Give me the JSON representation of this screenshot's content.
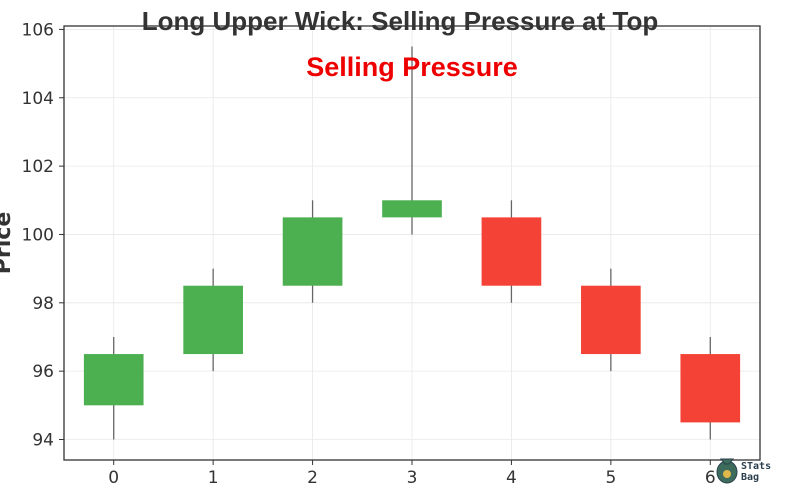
{
  "chart_data": {
    "type": "candlestick",
    "title": "Long Upper Wick: Selling Pressure at Top",
    "annotation": "Selling Pressure",
    "xlabel": "",
    "ylabel": "Price",
    "categories": [
      "0",
      "1",
      "2",
      "3",
      "4",
      "5",
      "6"
    ],
    "candles": [
      {
        "x": 0,
        "open": 95.0,
        "close": 96.5,
        "high": 97.0,
        "low": 94.0
      },
      {
        "x": 1,
        "open": 96.5,
        "close": 98.5,
        "high": 99.0,
        "low": 96.0
      },
      {
        "x": 2,
        "open": 98.5,
        "close": 100.5,
        "high": 101.0,
        "low": 98.0
      },
      {
        "x": 3,
        "open": 100.5,
        "close": 101.0,
        "high": 105.5,
        "low": 100.0
      },
      {
        "x": 4,
        "open": 100.5,
        "close": 98.5,
        "high": 101.0,
        "low": 98.0
      },
      {
        "x": 5,
        "open": 98.5,
        "close": 96.5,
        "high": 99.0,
        "low": 96.0
      },
      {
        "x": 6,
        "open": 96.5,
        "close": 94.5,
        "high": 97.0,
        "low": 94.0
      }
    ],
    "ylim": [
      93.4,
      106.1
    ],
    "xlim": [
      -0.5,
      6.5
    ],
    "yticks": [
      94,
      96,
      98,
      100,
      102,
      104,
      106
    ],
    "xticks": [
      0,
      1,
      2,
      3,
      4,
      5,
      6
    ],
    "grid": true,
    "colors": {
      "up": "#4caf50",
      "down": "#f44336",
      "wick": "#666666",
      "axis": "#333333",
      "title": "#333333",
      "annotation": "#ee0000"
    }
  },
  "logo": {
    "text_line1": "STats",
    "text_line2": "Bag",
    "icon": "money-bag-icon"
  }
}
